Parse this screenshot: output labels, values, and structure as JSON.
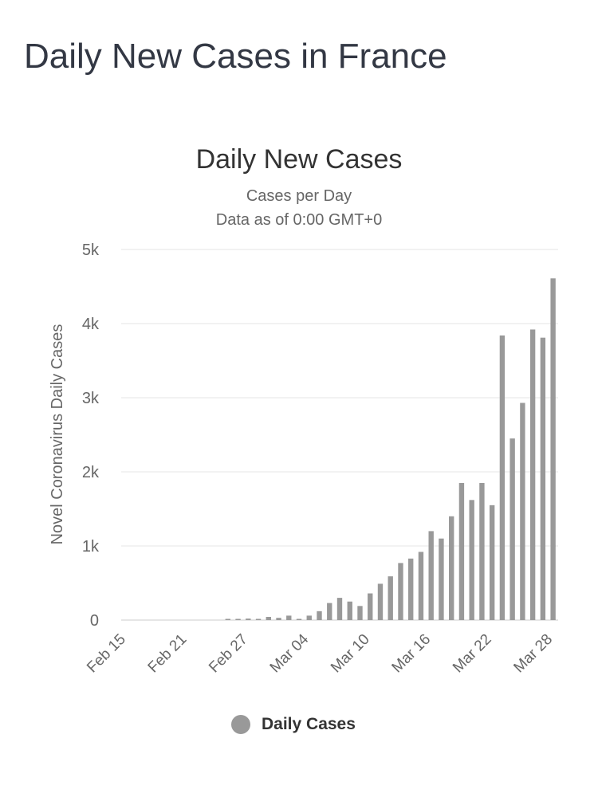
{
  "page": {
    "heading": "Daily New Cases in France"
  },
  "colors": {
    "bar": "#999999",
    "grid": "#e6e6e6",
    "axis_text": "#666666",
    "title_text": "#333333"
  },
  "chart_data": {
    "type": "bar",
    "title": "Daily New Cases",
    "subtitle_lines": [
      "Cases per Day",
      "Data as of 0:00 GMT+0"
    ],
    "xlabel": "",
    "ylabel": "Novel Coronavirus Daily Cases",
    "ylim": [
      0,
      5000
    ],
    "yticks": [
      0,
      1000,
      2000,
      3000,
      4000,
      5000
    ],
    "ytick_labels": [
      "0",
      "1k",
      "2k",
      "3k",
      "4k",
      "5k"
    ],
    "xtick_labels": [
      "Feb 15",
      "Feb 21",
      "Feb 27",
      "Mar 04",
      "Mar 10",
      "Mar 16",
      "Mar 22",
      "Mar 28"
    ],
    "grid": true,
    "legend_position": "bottom-center",
    "categories": [
      "Feb 15",
      "Feb 16",
      "Feb 17",
      "Feb 18",
      "Feb 19",
      "Feb 20",
      "Feb 21",
      "Feb 22",
      "Feb 23",
      "Feb 24",
      "Feb 25",
      "Feb 26",
      "Feb 27",
      "Feb 28",
      "Feb 29",
      "Mar 01",
      "Mar 02",
      "Mar 03",
      "Mar 04",
      "Mar 05",
      "Mar 06",
      "Mar 07",
      "Mar 08",
      "Mar 09",
      "Mar 10",
      "Mar 11",
      "Mar 12",
      "Mar 13",
      "Mar 14",
      "Mar 15",
      "Mar 16",
      "Mar 17",
      "Mar 18",
      "Mar 19",
      "Mar 20",
      "Mar 21",
      "Mar 22",
      "Mar 23",
      "Mar 24",
      "Mar 25",
      "Mar 26",
      "Mar 27",
      "Mar 28"
    ],
    "series": [
      {
        "name": "Daily Cases",
        "values": [
          0,
          0,
          0,
          0,
          0,
          0,
          0,
          0,
          0,
          0,
          2,
          4,
          20,
          5,
          43,
          30,
          60,
          4,
          60,
          120,
          230,
          300,
          250,
          190,
          360,
          490,
          590,
          770,
          830,
          920,
          1200,
          1100,
          1400,
          1850,
          1620,
          1850,
          1550,
          3840,
          2450,
          2930,
          3920,
          3810,
          4610
        ]
      }
    ]
  }
}
